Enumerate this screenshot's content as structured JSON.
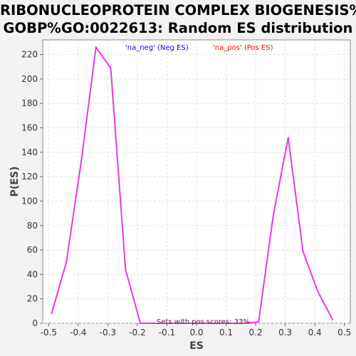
{
  "chart_data": {
    "type": "line",
    "title_lines": [
      "RIBONUCLEOPROTEIN COMPLEX BIOGENESIS%",
      "GOBP%GO:0022613: Random ES distribution"
    ],
    "xlabel": "ES",
    "ylabel": "P(ES)",
    "xlim": [
      -0.52,
      0.52
    ],
    "ylim": [
      0,
      232
    ],
    "xticks": [
      -0.5,
      -0.4,
      -0.3,
      -0.2,
      -0.1,
      0.0,
      0.1,
      0.2,
      0.3,
      0.4,
      0.5
    ],
    "xtick_labels": [
      "-0.5",
      "-0.4",
      "-0.3",
      "-0.2",
      "-0.1",
      "0.0",
      "0.1",
      "0.2",
      "0.3",
      "0.4",
      "0.5"
    ],
    "yticks": [
      0,
      20,
      40,
      60,
      80,
      100,
      120,
      140,
      160,
      180,
      200,
      220
    ],
    "ytick_labels": [
      "0",
      "20",
      "40",
      "60",
      "80",
      "100",
      "120",
      "140",
      "160",
      "180",
      "200",
      "220"
    ],
    "grid": true,
    "legend": [
      {
        "label": "'na_neg' (Neg ES)",
        "color": "#0000ff"
      },
      {
        "label": "'na_pos' (Pos ES)",
        "color": "#ff0000"
      }
    ],
    "legend_placement": "top",
    "line_color": "#ee33ee",
    "series": [
      {
        "points": [
          [
            -0.49,
            8
          ],
          [
            -0.44,
            50
          ],
          [
            -0.39,
            132
          ],
          [
            -0.34,
            226
          ],
          [
            -0.29,
            209
          ],
          [
            -0.24,
            44
          ],
          [
            -0.19,
            0
          ],
          [
            -0.14,
            0
          ],
          [
            -0.09,
            0
          ],
          [
            -0.04,
            0
          ],
          [
            0.01,
            0
          ],
          [
            0.06,
            0
          ],
          [
            0.11,
            0
          ],
          [
            0.16,
            0
          ],
          [
            0.21,
            1
          ],
          [
            0.26,
            89
          ],
          [
            0.31,
            152
          ],
          [
            0.36,
            59
          ],
          [
            0.41,
            26
          ],
          [
            0.46,
            3
          ]
        ]
      }
    ],
    "annotation": "Sets with pos scores: 33%"
  }
}
